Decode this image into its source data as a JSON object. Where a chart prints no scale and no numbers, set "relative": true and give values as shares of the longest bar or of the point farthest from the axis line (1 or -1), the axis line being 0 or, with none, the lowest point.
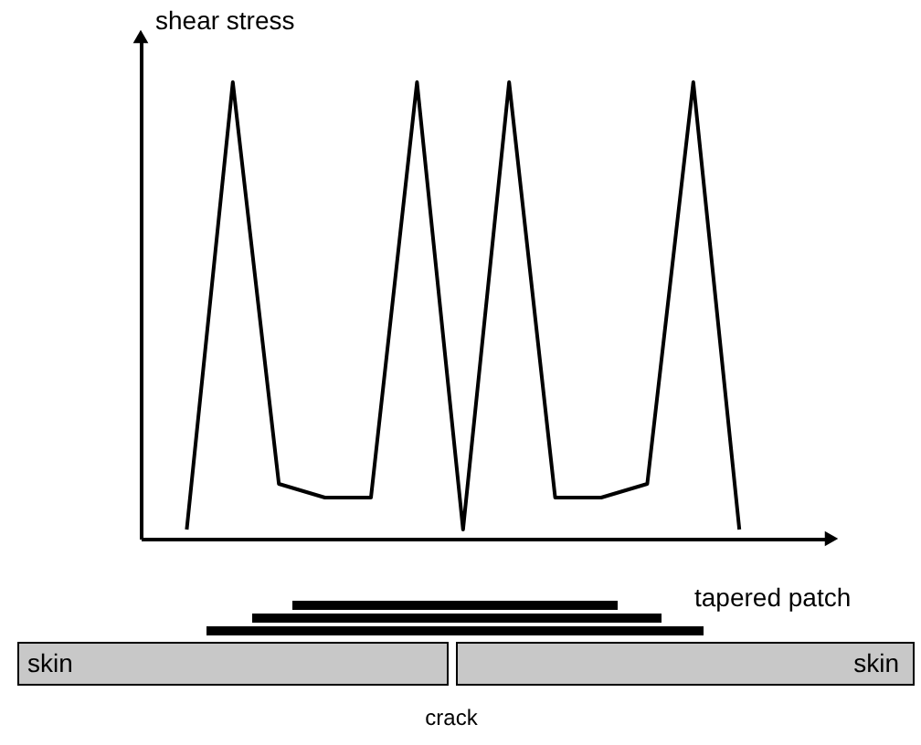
{
  "chart_data": {
    "type": "line",
    "relative": true,
    "ylabel": "shear stress",
    "categories": [
      null,
      null,
      null,
      null,
      null,
      null,
      null,
      null,
      null,
      null,
      null,
      null,
      null
    ],
    "values": [
      0.02,
      1,
      0.12,
      0.09,
      0.09,
      1,
      0.02,
      1,
      0.09,
      0.09,
      0.12,
      1,
      0.02
    ],
    "color": "#000000",
    "marker": "none",
    "line_style": "solid",
    "grid": false,
    "annotations": [
      "tapered patch",
      "skin",
      "skin",
      "crack"
    ]
  }
}
